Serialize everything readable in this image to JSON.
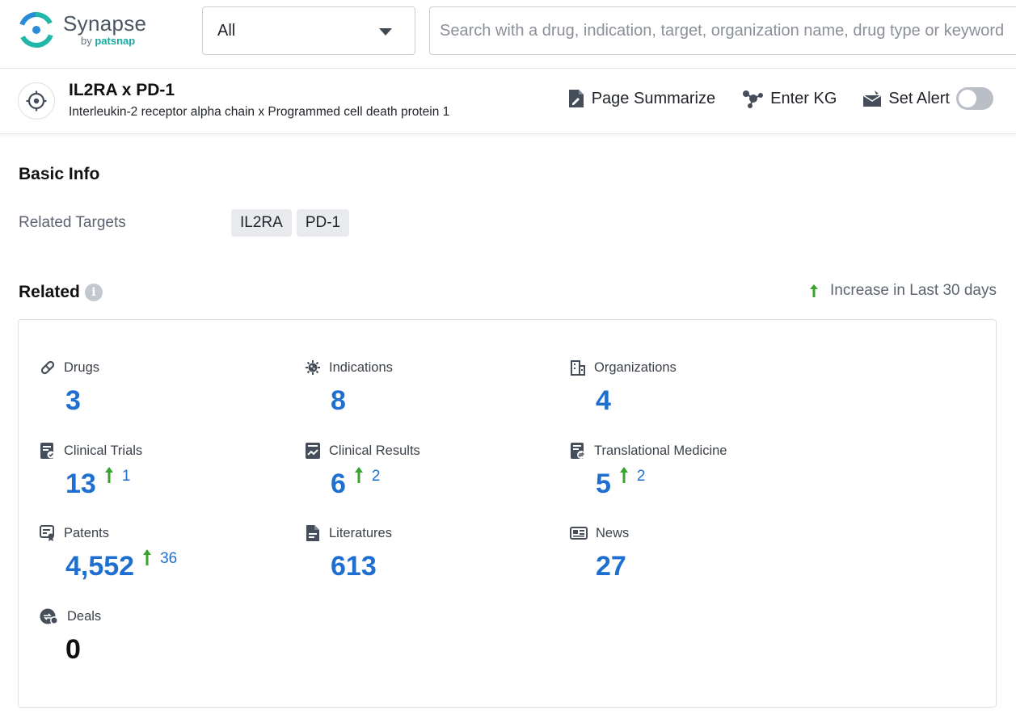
{
  "header": {
    "logo": {
      "name": "Synapse",
      "by": "by",
      "brand": "patsnap"
    },
    "select": {
      "value": "All"
    },
    "search": {
      "placeholder": "Search with a drug, indication, target, organization name, drug type or keyword"
    }
  },
  "entity": {
    "title": "IL2RA x PD-1",
    "subtitle": "Interleukin-2 receptor alpha chain x Programmed cell death protein 1",
    "actions": {
      "summarize": "Page Summarize",
      "kg": "Enter KG",
      "alert": "Set Alert"
    },
    "alert_enabled": false
  },
  "basic_info": {
    "title": "Basic Info",
    "related_targets_label": "Related Targets",
    "targets": [
      "IL2RA",
      "PD-1"
    ]
  },
  "related": {
    "title": "Related",
    "legend": "Increase in Last 30 days",
    "stats": {
      "drugs": {
        "label": "Drugs",
        "value": "3",
        "icon": "pill-icon"
      },
      "indications": {
        "label": "Indications",
        "value": "8",
        "icon": "virus-icon"
      },
      "organizations": {
        "label": "Organizations",
        "value": "4",
        "icon": "building-icon"
      },
      "clinical_trials": {
        "label": "Clinical Trials",
        "value": "13",
        "increase": "1",
        "icon": "clipboard-icon"
      },
      "clinical_results": {
        "label": "Clinical Results",
        "value": "6",
        "increase": "2",
        "icon": "chart-doc-icon"
      },
      "translational": {
        "label": "Translational Medicine",
        "value": "5",
        "increase": "2",
        "icon": "exchange-doc-icon"
      },
      "patents": {
        "label": "Patents",
        "value": "4,552",
        "increase": "36",
        "icon": "certificate-icon"
      },
      "literatures": {
        "label": "Literatures",
        "value": "613",
        "icon": "document-icon"
      },
      "news": {
        "label": "News",
        "value": "27",
        "icon": "newspaper-icon"
      },
      "deals": {
        "label": "Deals",
        "value": "0",
        "icon": "handshake-icon"
      }
    }
  },
  "colors": {
    "accent": "#1f6fd1",
    "increase": "#3aa32e",
    "icon": "#454d5a",
    "brand_teal": "#1aa8a0"
  }
}
